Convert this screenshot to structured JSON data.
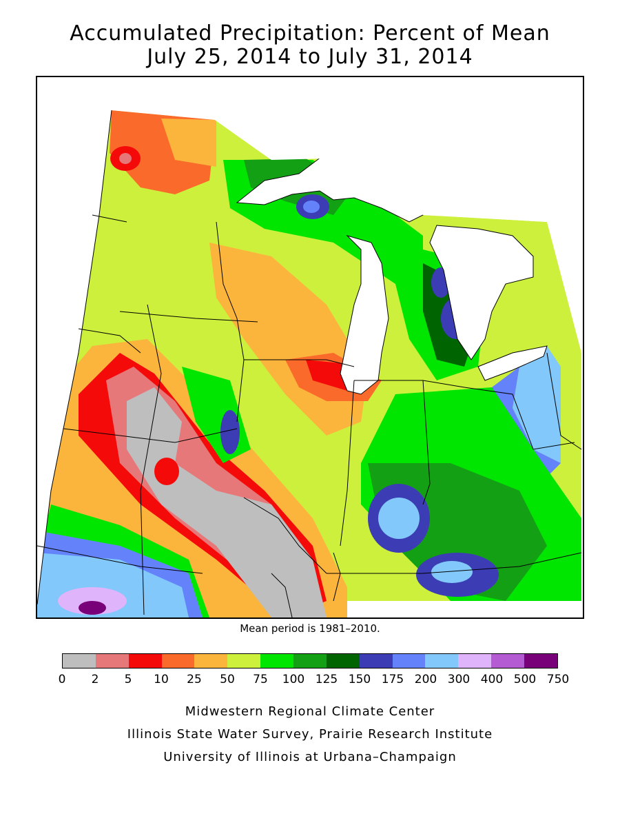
{
  "title": {
    "line1": "Accumulated Precipitation: Percent of Mean",
    "line2": "July 25, 2014 to July 31, 2014"
  },
  "mean_period": "Mean period is 1981–2010.",
  "legend": {
    "colors": [
      "#bebebe",
      "#e6787a",
      "#f50a0a",
      "#fa6a2a",
      "#fcb53c",
      "#cdf03c",
      "#00e600",
      "#14a014",
      "#006400",
      "#3c3cb4",
      "#6482fa",
      "#82c8fa",
      "#e0b4fa",
      "#b45ad2",
      "#780078"
    ],
    "ticks": [
      "0",
      "2",
      "5",
      "10",
      "25",
      "50",
      "75",
      "100",
      "125",
      "150",
      "175",
      "200",
      "300",
      "400",
      "500",
      "750"
    ]
  },
  "credits": [
    "Midwestern Regional Climate Center",
    "Illinois State Water Survey, Prairie Research Institute",
    "University of Illinois at Urbana–Champaign"
  ]
}
